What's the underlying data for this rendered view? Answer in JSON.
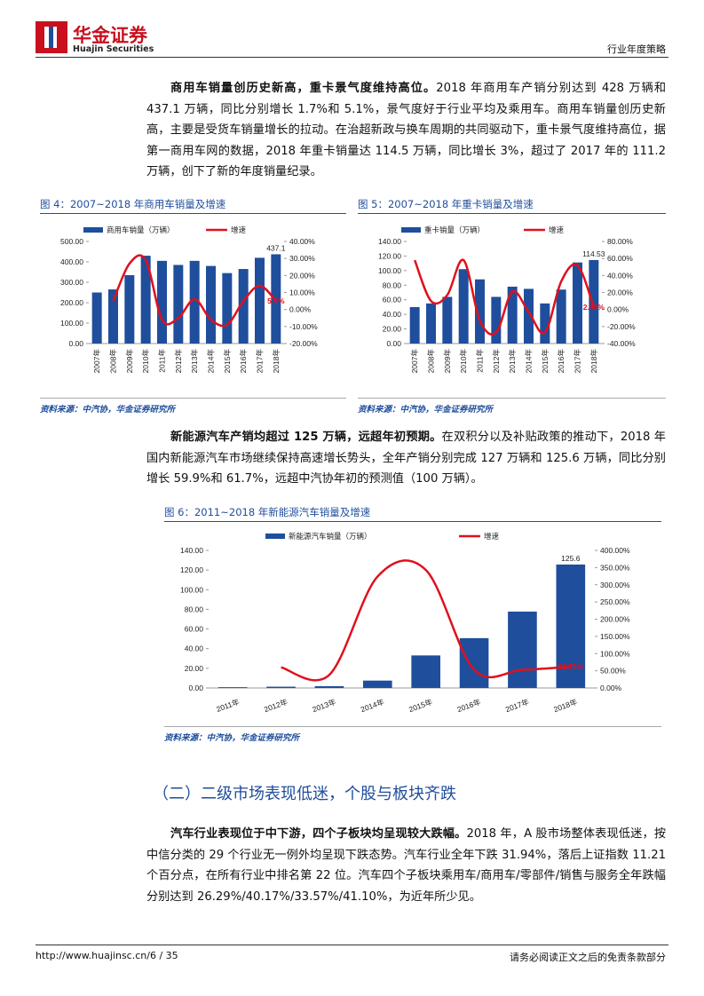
{
  "header": {
    "logo_cn": "华金证券",
    "logo_en": "Huajin Securities",
    "report_type": "行业年度策略"
  },
  "paragraphs": [
    {
      "bold": "商用车销量创历史新高，重卡景气度维持高位。",
      "text": "2018 年商用车产销分别达到 428 万辆和 437.1 万辆，同比分别增长 1.7%和 5.1%，景气度好于行业平均及乘用车。商用车销量创历史新高，主要是受货车销量增长的拉动。在治超新政与换车周期的共同驱动下，重卡景气度维持高位，据第一商用车网的数据，2018 年重卡销量达 114.5 万辆，同比增长 3%，超过了 2017 年的 111.2 万辆，创下了新的年度销量纪录。"
    },
    {
      "bold": "新能源汽车产销均超过 125 万辆，远超年初预期。",
      "text": "在双积分以及补贴政策的推动下，2018 年国内新能源汽车市场继续保持高速增长势头，全年产销分别完成 127 万辆和 125.6 万辆，同比分别增长 59.9%和 61.7%，远超中汽协年初的预测值（100 万辆）。"
    },
    {
      "bold": "汽车行业表现位于中下游，四个子板块均呈现较大跌幅。",
      "text": "2018 年，A 股市场整体表现低迷，按中信分类的 29 个行业无一例外均呈现下跌态势。汽车行业全年下跌 31.94%，落后上证指数 11.21 个百分点，在所有行业中排名第 22 位。汽车四个子板块乘用车/商用车/零部件/销售与服务全年跌幅分别达到 26.29%/40.17%/33.57%/41.10%，为近年所少见。"
    }
  ],
  "section_heading": "（二）二级市场表现低迷，个股与板块齐跌",
  "chart_data": [
    {
      "type": "bar_line",
      "title": "图 4：2007~2018 年商用车销量及增速",
      "source": "资料来源：中汽协，华金证券研究所",
      "categories": [
        "2007年",
        "2008年",
        "2009年",
        "2010年",
        "2011年",
        "2012年",
        "2013年",
        "2014年",
        "2015年",
        "2016年",
        "2017年",
        "2018年"
      ],
      "series": [
        {
          "name": "商用车销量（万辆）",
          "color": "#1f4e9c",
          "values": [
            250,
            265,
            335,
            430,
            405,
            385,
            405,
            380,
            345,
            365,
            420,
            437.1
          ],
          "value_labels": [
            null,
            null,
            null,
            null,
            null,
            null,
            null,
            null,
            null,
            null,
            null,
            "437.1"
          ]
        },
        {
          "name": "增速",
          "color": "#e0101e",
          "axis": "y2",
          "values": [
            null,
            5,
            27,
            29,
            -6,
            -5,
            6,
            -6,
            -9,
            5,
            14,
            5.1
          ],
          "value_labels": [
            null,
            null,
            null,
            null,
            null,
            null,
            null,
            null,
            null,
            null,
            null,
            "5.1%"
          ]
        }
      ],
      "ylim": [
        0,
        500
      ],
      "yticks": [
        {
          "value": 0,
          "label": "0.00"
        },
        {
          "value": 100,
          "label": "100.00"
        },
        {
          "value": 200,
          "label": "200.00"
        },
        {
          "value": 300,
          "label": "300.00"
        },
        {
          "value": 400,
          "label": "400.00"
        },
        {
          "value": 500,
          "label": "500.00"
        }
      ],
      "y2lim": [
        -20,
        40
      ],
      "y2ticks": [
        {
          "value": -20,
          "label": "-20.00%"
        },
        {
          "value": -10,
          "label": "-10.00%"
        },
        {
          "value": 0,
          "label": "0.00%"
        },
        {
          "value": 10,
          "label": "10.00%"
        },
        {
          "value": 20,
          "label": "20.00%"
        },
        {
          "value": 30,
          "label": "30.00%"
        },
        {
          "value": 40,
          "label": "40.00%"
        }
      ]
    },
    {
      "type": "bar_line",
      "title": "图 5：2007~2018 年重卡销量及增速",
      "source": "资料来源：中汽协，华金证券研究所",
      "categories": [
        "2007年",
        "2008年",
        "2009年",
        "2010年",
        "2011年",
        "2012年",
        "2013年",
        "2014年",
        "2015年",
        "2016年",
        "2017年",
        "2018年"
      ],
      "series": [
        {
          "name": "重卡销量（万辆）",
          "color": "#1f4e9c",
          "values": [
            50,
            55,
            64,
            102,
            88,
            64,
            78,
            75,
            55,
            74,
            111.2,
            114.53
          ],
          "value_labels": [
            null,
            null,
            null,
            null,
            null,
            null,
            null,
            null,
            null,
            null,
            null,
            "114.53"
          ]
        },
        {
          "name": "增速",
          "color": "#e0101e",
          "axis": "y2",
          "values": [
            58,
            10,
            17,
            58,
            -13,
            -27,
            21,
            -3,
            -27,
            33,
            52,
            2.98
          ],
          "value_labels": [
            null,
            null,
            null,
            null,
            null,
            null,
            null,
            null,
            null,
            null,
            null,
            "2.98%"
          ]
        }
      ],
      "ylim": [
        0,
        140
      ],
      "yticks": [
        {
          "value": 0,
          "label": "0.00"
        },
        {
          "value": 20,
          "label": "20.00"
        },
        {
          "value": 40,
          "label": "40.00"
        },
        {
          "value": 60,
          "label": "60.00"
        },
        {
          "value": 80,
          "label": "80.00"
        },
        {
          "value": 100,
          "label": "100.00"
        },
        {
          "value": 120,
          "label": "120.00"
        },
        {
          "value": 140,
          "label": "140.00"
        }
      ],
      "y2lim": [
        -40,
        80
      ],
      "y2ticks": [
        {
          "value": -40,
          "label": "-40.00%"
        },
        {
          "value": -20,
          "label": "-20.00%"
        },
        {
          "value": 0,
          "label": "0.00%"
        },
        {
          "value": 20,
          "label": "20.00%"
        },
        {
          "value": 40,
          "label": "40.00%"
        },
        {
          "value": 60,
          "label": "60.00%"
        },
        {
          "value": 80,
          "label": "80.00%"
        }
      ]
    },
    {
      "type": "bar_line",
      "title": "图 6：2011~2018 年新能源汽车销量及增速",
      "source": "资料来源：中汽协，华金证券研究所",
      "categories": [
        "2011年",
        "2012年",
        "2013年",
        "2014年",
        "2015年",
        "2016年",
        "2017年",
        "2018年"
      ],
      "series": [
        {
          "name": "新能源汽车销量（万辆）",
          "color": "#1f4e9c",
          "values": [
            0.8,
            1.3,
            1.8,
            7.5,
            33.1,
            50.7,
            77.7,
            125.6
          ],
          "value_labels": [
            null,
            null,
            null,
            null,
            null,
            null,
            null,
            "125.6"
          ]
        },
        {
          "name": "增速",
          "color": "#e0101e",
          "axis": "y2",
          "values": [
            null,
            60,
            38,
            324,
            343,
            53,
            53,
            61.7
          ],
          "value_labels": [
            null,
            null,
            null,
            null,
            null,
            null,
            null,
            "61.70%"
          ]
        }
      ],
      "ylim": [
        0,
        140
      ],
      "yticks": [
        {
          "value": 0,
          "label": "0.00"
        },
        {
          "value": 20,
          "label": "20.00"
        },
        {
          "value": 40,
          "label": "40.00"
        },
        {
          "value": 60,
          "label": "60.00"
        },
        {
          "value": 80,
          "label": "80.00"
        },
        {
          "value": 100,
          "label": "100.00"
        },
        {
          "value": 120,
          "label": "120.00"
        },
        {
          "value": 140,
          "label": "140.00"
        }
      ],
      "y2lim": [
        0,
        400
      ],
      "y2ticks": [
        {
          "value": 0,
          "label": "0.00%"
        },
        {
          "value": 50,
          "label": "50.00%"
        },
        {
          "value": 100,
          "label": "100.00%"
        },
        {
          "value": 150,
          "label": "150.00%"
        },
        {
          "value": 200,
          "label": "200.00%"
        },
        {
          "value": 250,
          "label": "250.00%"
        },
        {
          "value": 300,
          "label": "300.00%"
        },
        {
          "value": 350,
          "label": "350.00%"
        },
        {
          "value": 400,
          "label": "400.00%"
        }
      ]
    }
  ],
  "footer": {
    "url": "http://www.huajinsc.cn/6 / 35",
    "disclaimer": "请务必阅读正文之后的免责条款部分"
  }
}
